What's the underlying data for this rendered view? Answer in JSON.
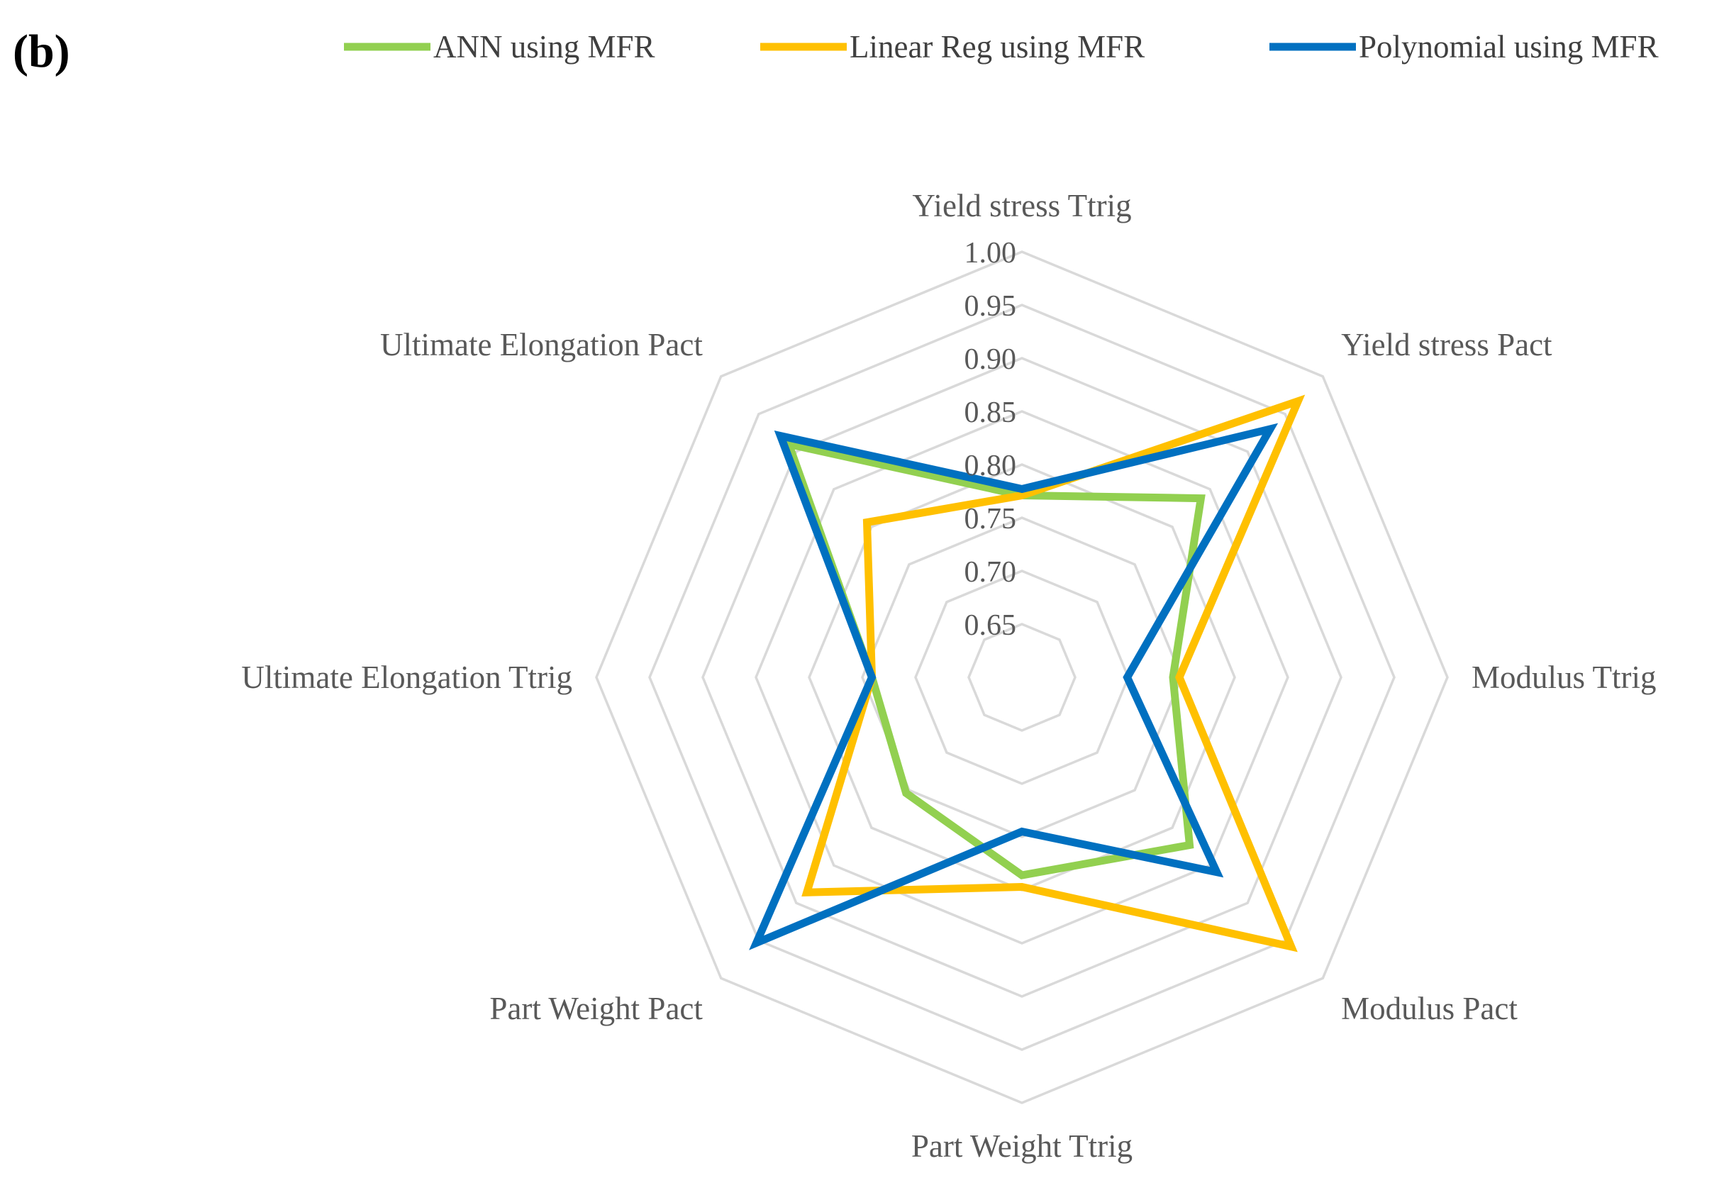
{
  "panel_label": "(b)",
  "chart_data": {
    "type": "radar",
    "title": "",
    "axes": [
      "Yield stress Ttrig",
      "Yield stress Pact",
      "Modulus Ttrig",
      "Modulus Pact",
      "Part Weight Ttrig",
      "Part Weight Pact",
      "Ultimate Elongation Ttrig",
      "Ultimate Elongation Pact"
    ],
    "ticks": [
      "1.00",
      "0.95",
      "0.90",
      "0.85",
      "0.80",
      "0.75",
      "0.70",
      "0.65"
    ],
    "range": [
      0.6,
      1.0
    ],
    "grid": true,
    "legend_position": "top",
    "series": [
      {
        "name": "ANN using MFR",
        "color": "#92d050",
        "values": [
          0.771,
          0.838,
          0.742,
          0.823,
          0.786,
          0.754,
          0.741,
          0.91
        ]
      },
      {
        "name": "Linear Reg using MFR",
        "color": "#ffc000",
        "values": [
          0.771,
          0.967,
          0.748,
          0.958,
          0.797,
          0.886,
          0.741,
          0.806
        ]
      },
      {
        "name": "Polynomial using MFR",
        "color": "#0070c0",
        "values": [
          0.777,
          0.93,
          0.699,
          0.859,
          0.745,
          0.953,
          0.741,
          0.921
        ]
      }
    ]
  }
}
